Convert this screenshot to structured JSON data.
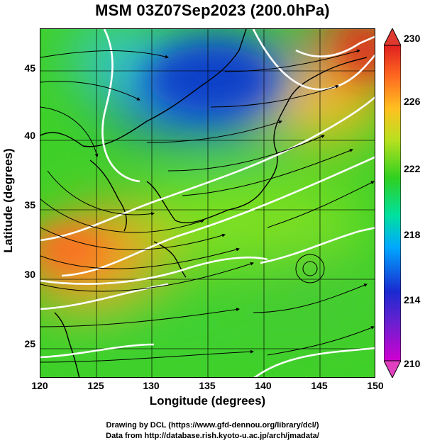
{
  "title": "MSM 03Z07Sep2023 (200.0hPa)",
  "axes": {
    "xlabel": "Longitude (degrees)",
    "ylabel": "Latitude  (degrees)",
    "xticks": [
      "120",
      "125",
      "130",
      "135",
      "140",
      "145",
      "150"
    ],
    "yticks": [
      "25",
      "30",
      "35",
      "40",
      "45"
    ],
    "xlim": [
      120,
      150
    ],
    "ylim": [
      22.4,
      47.6
    ]
  },
  "colorbar": {
    "ticks": [
      "230",
      "226",
      "222",
      "218",
      "214",
      "210"
    ],
    "range": [
      210,
      230
    ],
    "colors": [
      "#cc00cc",
      "#2020d0",
      "#00a0ff",
      "#00e0a0",
      "#40d020",
      "#a0e020",
      "#ffc020",
      "#ff6a20",
      "#e02020"
    ]
  },
  "credits": {
    "line1": "Drawing by DCL (https://www.gfd-dennou.org/library/dcl/)",
    "line2": "Data from http://database.rish.kyoto-u.ac.jp/arch/jmadata/"
  }
}
